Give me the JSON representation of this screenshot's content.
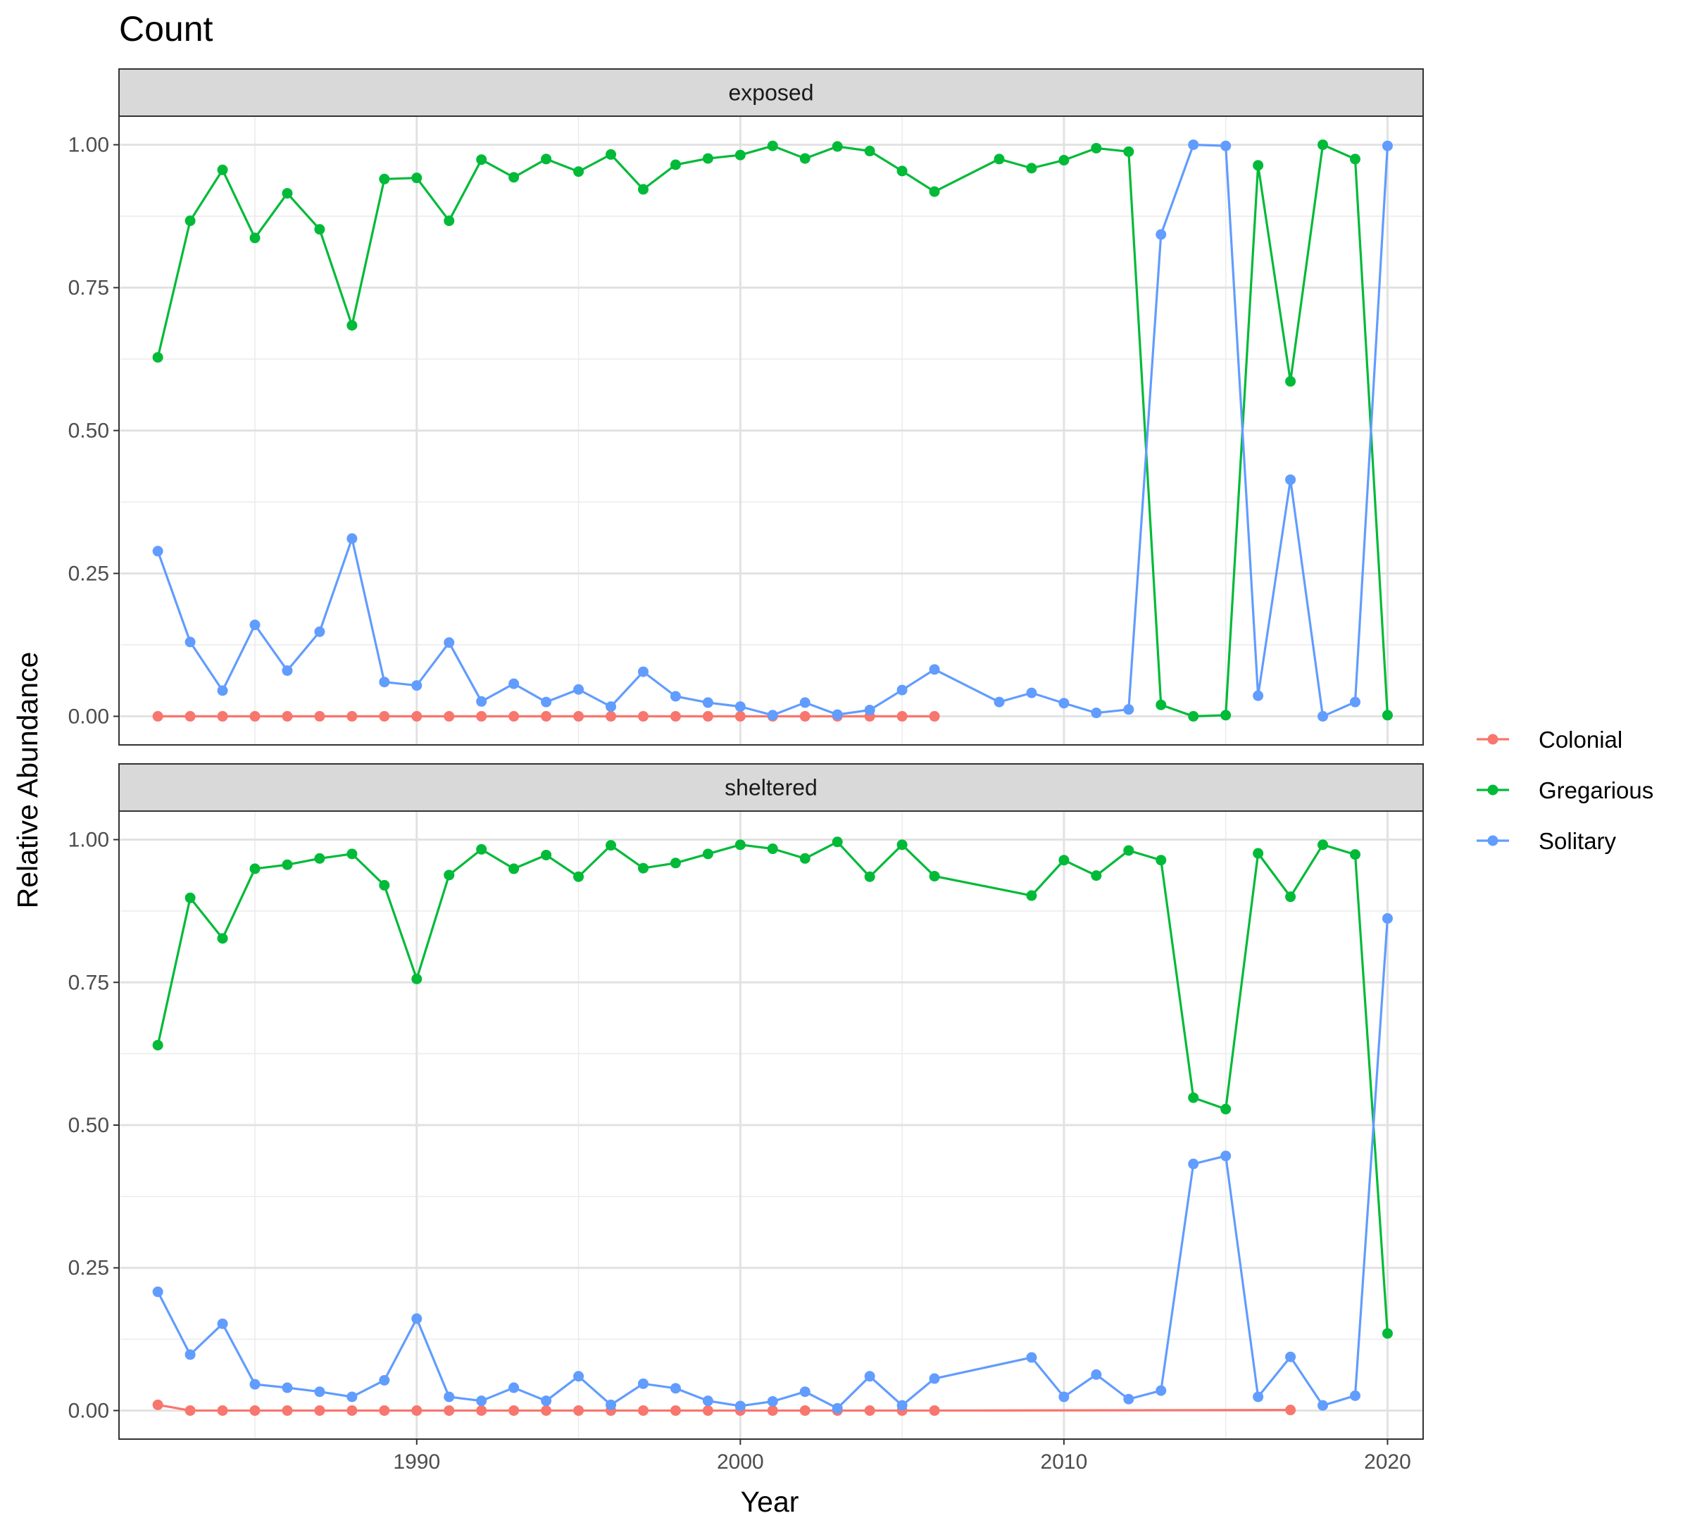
{
  "chart_data": {
    "type": "line",
    "title": "Count",
    "xlabel": "Year",
    "ylabel": "Relative Abundance",
    "xlim": [
      1980.8,
      2021.1
    ],
    "ylim": [
      -0.05,
      1.05
    ],
    "x_ticks": [
      1990,
      2000,
      2010,
      2020
    ],
    "y_ticks": [
      0,
      0.25,
      0.5,
      0.75,
      1.0
    ],
    "y_tick_labels": [
      "0.00",
      "0.25",
      "0.50",
      "0.75",
      "1.00"
    ],
    "grid": true,
    "legend_position": "right",
    "colors": {
      "Colonial": "#F8766D",
      "Gregarious": "#00BA38",
      "Solitary": "#619CFF"
    },
    "legend": [
      "Colonial",
      "Gregarious",
      "Solitary"
    ],
    "panels": [
      {
        "label": "exposed",
        "series": [
          {
            "name": "Colonial",
            "x": [
              1982,
              1983,
              1984,
              1985,
              1986,
              1987,
              1988,
              1989,
              1990,
              1991,
              1992,
              1993,
              1994,
              1995,
              1996,
              1997,
              1998,
              1999,
              2000,
              2001,
              2002,
              2003,
              2004,
              2005,
              2006
            ],
            "values": [
              0,
              0,
              0,
              0,
              0,
              0,
              0,
              0,
              0,
              0,
              0,
              0,
              0,
              0,
              0,
              0,
              0,
              0,
              0,
              0,
              0,
              0,
              0,
              0,
              0
            ]
          },
          {
            "name": "Gregarious",
            "x": [
              1982,
              1983,
              1984,
              1985,
              1986,
              1987,
              1988,
              1989,
              1990,
              1991,
              1992,
              1993,
              1994,
              1995,
              1996,
              1997,
              1998,
              1999,
              2000,
              2001,
              2002,
              2003,
              2004,
              2005,
              2006,
              2008,
              2009,
              2010,
              2011,
              2012,
              2013,
              2014,
              2015,
              2016,
              2017,
              2018,
              2019,
              2020
            ],
            "values": [
              0.628,
              0.867,
              0.956,
              0.837,
              0.915,
              0.852,
              0.684,
              0.94,
              0.942,
              0.867,
              0.974,
              0.943,
              0.975,
              0.953,
              0.983,
              0.922,
              0.965,
              0.976,
              0.982,
              0.998,
              0.976,
              0.997,
              0.989,
              0.954,
              0.918,
              0.975,
              0.959,
              0.973,
              0.994,
              0.988,
              0.02,
              0.0,
              0.002,
              0.964,
              0.586,
              1.0,
              0.975,
              0.002
            ]
          },
          {
            "name": "Solitary",
            "x": [
              1982,
              1983,
              1984,
              1985,
              1986,
              1987,
              1988,
              1989,
              1990,
              1991,
              1992,
              1993,
              1994,
              1995,
              1996,
              1997,
              1998,
              1999,
              2000,
              2001,
              2002,
              2003,
              2004,
              2005,
              2006,
              2008,
              2009,
              2010,
              2011,
              2012,
              2013,
              2014,
              2015,
              2016,
              2017,
              2018,
              2019,
              2020
            ],
            "values": [
              0.289,
              0.13,
              0.045,
              0.16,
              0.08,
              0.148,
              0.311,
              0.06,
              0.054,
              0.129,
              0.026,
              0.057,
              0.025,
              0.047,
              0.017,
              0.078,
              0.035,
              0.024,
              0.017,
              0.002,
              0.024,
              0.003,
              0.011,
              0.046,
              0.082,
              0.025,
              0.041,
              0.023,
              0.006,
              0.012,
              0.843,
              1.0,
              0.998,
              0.036,
              0.414,
              0.0,
              0.025,
              0.998
            ]
          }
        ]
      },
      {
        "label": "sheltered",
        "series": [
          {
            "name": "Colonial",
            "x": [
              1982,
              1983,
              1984,
              1985,
              1986,
              1987,
              1988,
              1989,
              1990,
              1991,
              1992,
              1993,
              1994,
              1995,
              1996,
              1997,
              1998,
              1999,
              2000,
              2001,
              2002,
              2003,
              2004,
              2005,
              2006,
              2017
            ],
            "values": [
              0.01,
              0,
              0,
              0,
              0,
              0,
              0,
              0,
              0,
              0,
              0,
              0,
              0,
              0,
              0,
              0,
              0,
              0,
              0,
              0,
              0,
              0,
              0,
              0,
              0,
              0.001
            ]
          },
          {
            "name": "Gregarious",
            "x": [
              1982,
              1983,
              1984,
              1985,
              1986,
              1987,
              1988,
              1989,
              1990,
              1991,
              1992,
              1993,
              1994,
              1995,
              1996,
              1997,
              1998,
              1999,
              2000,
              2001,
              2002,
              2003,
              2004,
              2005,
              2006,
              2009,
              2010,
              2011,
              2012,
              2013,
              2014,
              2015,
              2016,
              2017,
              2018,
              2019,
              2020
            ],
            "values": [
              0.64,
              0.898,
              0.827,
              0.949,
              0.956,
              0.967,
              0.975,
              0.92,
              0.756,
              0.938,
              0.983,
              0.949,
              0.973,
              0.935,
              0.99,
              0.95,
              0.959,
              0.975,
              0.991,
              0.984,
              0.967,
              0.996,
              0.935,
              0.991,
              0.936,
              0.902,
              0.964,
              0.937,
              0.981,
              0.964,
              0.548,
              0.528,
              0.976,
              0.9,
              0.991,
              0.974,
              0.135
            ]
          },
          {
            "name": "Solitary",
            "x": [
              1982,
              1983,
              1984,
              1985,
              1986,
              1987,
              1988,
              1989,
              1990,
              1991,
              1992,
              1993,
              1994,
              1995,
              1996,
              1997,
              1998,
              1999,
              2000,
              2001,
              2002,
              2003,
              2004,
              2005,
              2006,
              2009,
              2010,
              2011,
              2012,
              2013,
              2014,
              2015,
              2016,
              2017,
              2018,
              2019,
              2020
            ],
            "values": [
              0.208,
              0.098,
              0.152,
              0.046,
              0.04,
              0.033,
              0.024,
              0.053,
              0.161,
              0.024,
              0.017,
              0.04,
              0.017,
              0.06,
              0.01,
              0.047,
              0.039,
              0.017,
              0.008,
              0.016,
              0.033,
              0.004,
              0.06,
              0.009,
              0.056,
              0.093,
              0.024,
              0.063,
              0.02,
              0.035,
              0.432,
              0.446,
              0.024,
              0.094,
              0.009,
              0.026,
              0.862
            ]
          }
        ]
      }
    ]
  }
}
